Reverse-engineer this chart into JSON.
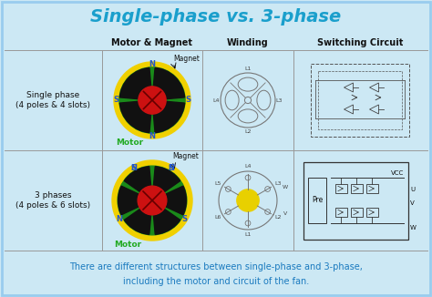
{
  "title": "Single-phase vs. 3-phase",
  "title_color": "#1a9fcc",
  "background_color": "#cce8f4",
  "col_headers": [
    "Motor & Magnet",
    "Winding",
    "Switching Circuit"
  ],
  "row_labels": [
    "Single phase\n(4 poles & 4 slots)",
    "3 phases\n(4 poles & 6 slots)"
  ],
  "footer_line1": "There are different structures between single-phase and 3-phase,",
  "footer_line2": "including the motor and circuit of the fan.",
  "footer_color": "#1a7abf",
  "grid_color": "#999999",
  "motor_label_color": "#22aa22",
  "ns_color": "#2244cc"
}
